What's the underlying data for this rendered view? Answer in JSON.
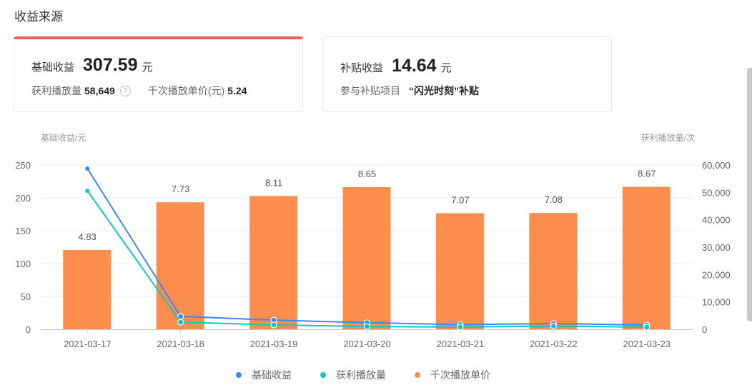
{
  "section": {
    "title": "收益来源"
  },
  "cards": [
    {
      "label": "基础收益",
      "amount": "307.59",
      "unit": "元",
      "active": true,
      "accent_color": "#f75c5c",
      "stats": [
        {
          "label": "获利播放量",
          "value": "58,649",
          "icon": "help-icon"
        },
        {
          "label": "千次播放单价(元)",
          "value": "5.24"
        }
      ]
    },
    {
      "label": "补贴收益",
      "amount": "14.64",
      "unit": "元",
      "active": false,
      "project_label": "参与补贴项目",
      "project_value": "“闪光时刻”补贴"
    }
  ],
  "help_glyph": "?",
  "chart_data": {
    "type": "bar",
    "categories": [
      "2021-03-17",
      "2021-03-18",
      "2021-03-19",
      "2021-03-20",
      "2021-03-21",
      "2021-03-22",
      "2021-03-23"
    ],
    "left_axis": {
      "title": "基础收益/元",
      "ticks": [
        "0",
        "50",
        "100",
        "150",
        "200",
        "250"
      ],
      "range": [
        0,
        250
      ]
    },
    "right_axis": {
      "title": "获利播放量/次",
      "ticks": [
        "0",
        "10,000",
        "20,000",
        "30,000",
        "40,000",
        "50,000",
        "60,000"
      ],
      "range": [
        0,
        60000
      ]
    },
    "series": [
      {
        "name": "基础收益",
        "type": "line",
        "axis": "left",
        "color": "#3f86f6",
        "values": [
          244.6,
          19.6,
          14.0,
          10.0,
          7.0,
          8.7,
          6.5
        ]
      },
      {
        "name": "获利播放量",
        "type": "line",
        "axis": "right",
        "color": "#14c4be",
        "values": [
          50600,
          2600,
          1600,
          1000,
          800,
          1200,
          750
        ]
      },
      {
        "name": "千次播放单价",
        "type": "bar",
        "axis": "left_scaled_x25",
        "color": "#ff8d4e",
        "values": [
          4.83,
          7.73,
          8.11,
          8.65,
          7.07,
          7.08,
          8.67
        ],
        "labels": [
          "4.83",
          "7.73",
          "8.11",
          "8.65",
          "7.07",
          "7.08",
          "8.67"
        ]
      }
    ],
    "legend": [
      "基础收益",
      "获利播放量",
      "千次播放单价"
    ],
    "legend_position": "bottom",
    "grid": true
  }
}
